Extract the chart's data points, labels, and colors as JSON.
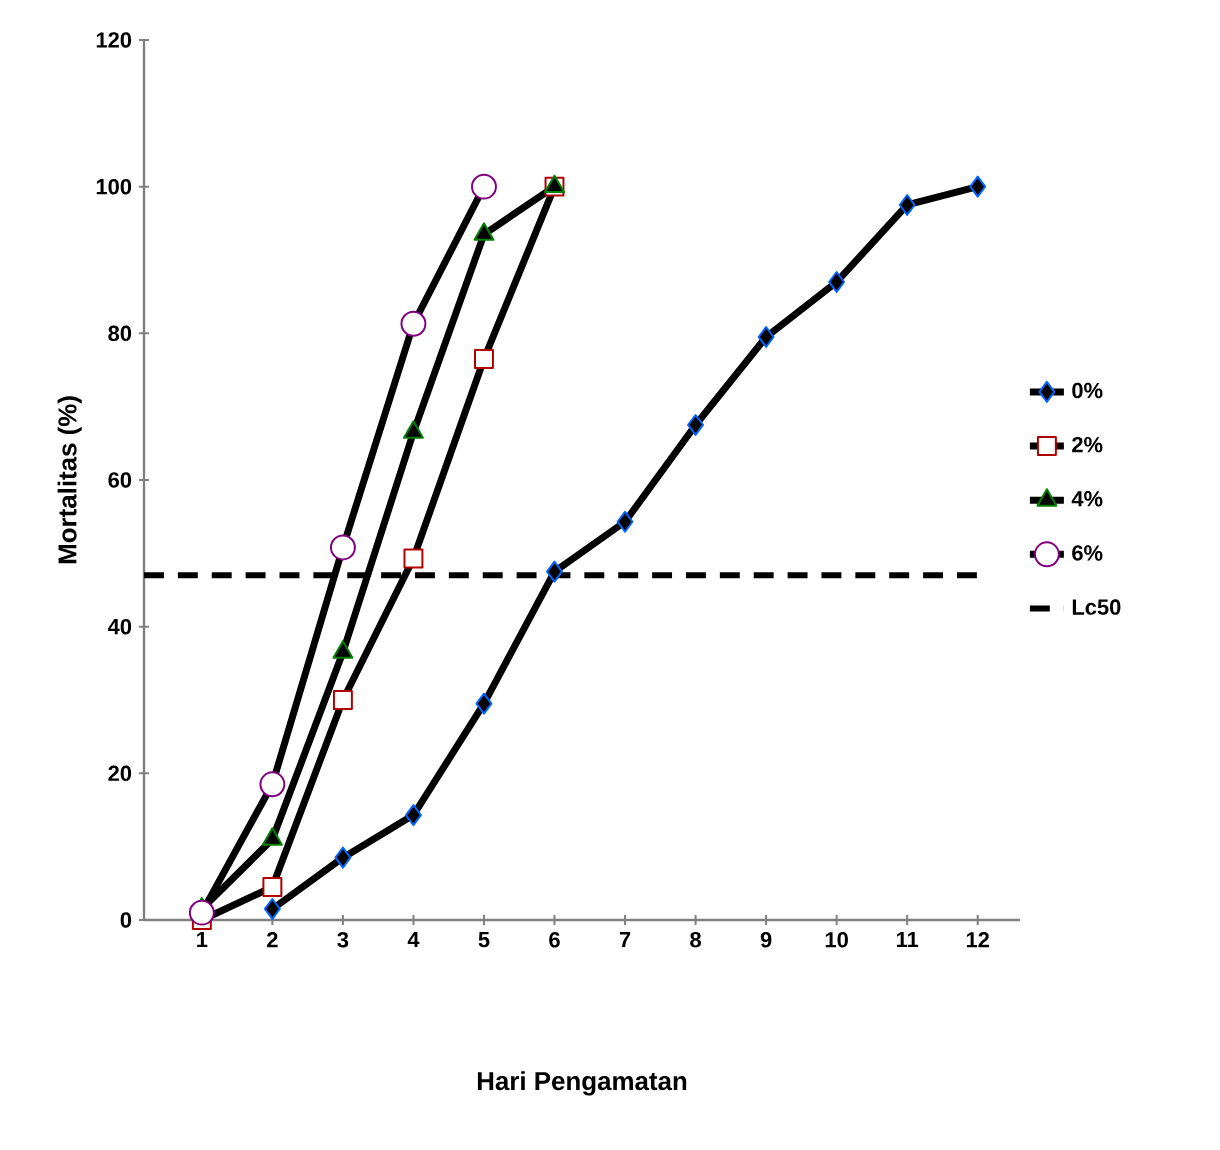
{
  "chart_data": {
    "type": "line",
    "xlabel": "Hari Pengamatan",
    "ylabel": "Mortalitas (%)",
    "categories": [
      "1",
      "2",
      "3",
      "4",
      "5",
      "6",
      "7",
      "8",
      "9",
      "10",
      "11",
      "12"
    ],
    "ylim": [
      0,
      120
    ],
    "yticks": [
      0,
      20,
      40,
      60,
      80,
      100,
      120
    ],
    "grid": false,
    "legend": "right",
    "series": [
      {
        "name": "0%",
        "color": "#000000",
        "marker": "diamond",
        "values": [
          null,
          1.5,
          8.5,
          14.3,
          29.5,
          47.5,
          54.3,
          67.5,
          79.5,
          87,
          97.5,
          100
        ]
      },
      {
        "name": "2%",
        "color": "#000000",
        "marker": "square",
        "values": [
          0,
          4.5,
          30,
          49.3,
          76.5,
          100,
          null,
          null,
          null,
          null,
          null,
          null
        ]
      },
      {
        "name": "4%",
        "color": "#000000",
        "marker": "triangle",
        "values": [
          1.5,
          11,
          36.5,
          66.5,
          93.5,
          100,
          null,
          null,
          null,
          null,
          null,
          null
        ]
      },
      {
        "name": "6%",
        "color": "#000000",
        "marker": "circle",
        "values": [
          1,
          18.5,
          50.8,
          81.3,
          100,
          null,
          null,
          null,
          null,
          null,
          null,
          null
        ]
      }
    ],
    "ref_lines": [
      {
        "axis": "y",
        "value": 47,
        "label": "Lc50",
        "color": "#000000",
        "line_style": "dashed"
      }
    ]
  }
}
